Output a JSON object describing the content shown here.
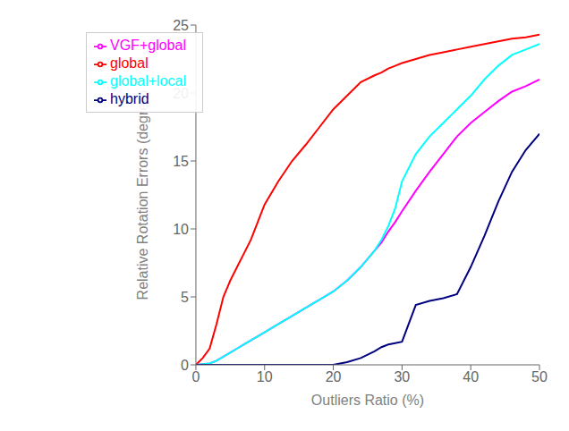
{
  "chart_data": {
    "type": "line",
    "x": [
      0,
      1,
      2,
      3,
      4,
      5,
      6,
      7,
      8,
      9,
      10,
      12,
      14,
      16,
      18,
      20,
      22,
      24,
      26,
      27,
      28,
      29,
      30,
      32,
      34,
      36,
      38,
      40,
      42,
      44,
      46,
      48,
      50
    ],
    "series": [
      {
        "name": "global",
        "color": "#ff0000",
        "values": [
          0.0,
          0.5,
          1.2,
          3.0,
          5.0,
          6.2,
          7.2,
          8.2,
          9.2,
          10.5,
          11.8,
          13.5,
          15.0,
          16.2,
          17.5,
          18.8,
          19.8,
          20.8,
          21.3,
          21.5,
          21.8,
          22.0,
          22.2,
          22.5,
          22.8,
          23.0,
          23.2,
          23.4,
          23.6,
          23.8,
          24.0,
          24.1,
          24.3
        ]
      },
      {
        "name": "VGF+global",
        "color": "#ff00ff",
        "values": [
          0.0,
          0.05,
          0.1,
          0.3,
          0.6,
          0.9,
          1.2,
          1.5,
          1.8,
          2.1,
          2.4,
          3.0,
          3.6,
          4.2,
          4.8,
          5.4,
          6.2,
          7.2,
          8.4,
          9.0,
          9.8,
          10.5,
          11.3,
          12.8,
          14.2,
          15.5,
          16.8,
          17.8,
          18.6,
          19.4,
          20.1,
          20.5,
          21.0
        ]
      },
      {
        "name": "global+local",
        "color": "#00ffff",
        "values": [
          0.0,
          0.05,
          0.1,
          0.3,
          0.6,
          0.9,
          1.2,
          1.5,
          1.8,
          2.1,
          2.4,
          3.0,
          3.6,
          4.2,
          4.8,
          5.4,
          6.2,
          7.2,
          8.4,
          9.2,
          10.2,
          11.5,
          13.5,
          15.5,
          16.8,
          17.8,
          18.8,
          19.8,
          21.0,
          22.0,
          22.8,
          23.2,
          23.6
        ]
      },
      {
        "name": "hybrid",
        "color": "#000080",
        "values": [
          0.0,
          0.0,
          0.0,
          0.0,
          0.0,
          0.0,
          0.0,
          0.0,
          0.0,
          0.0,
          0.0,
          0.0,
          0.0,
          0.0,
          0.0,
          0.0,
          0.2,
          0.5,
          1.0,
          1.3,
          1.5,
          1.6,
          1.7,
          4.4,
          4.7,
          4.9,
          5.2,
          7.2,
          9.5,
          12.0,
          14.2,
          15.8,
          17.0
        ]
      }
    ],
    "xlabel": "Outliers Ratio (%)",
    "ylabel": "Relative Rotation Errors (degree)",
    "xlim": [
      0,
      50
    ],
    "ylim": [
      0,
      25
    ],
    "xticks": [
      0,
      10,
      20,
      30,
      40,
      50
    ],
    "yticks": [
      0,
      5,
      10,
      15,
      20,
      25
    ],
    "grid": false,
    "legend": "upper left"
  }
}
